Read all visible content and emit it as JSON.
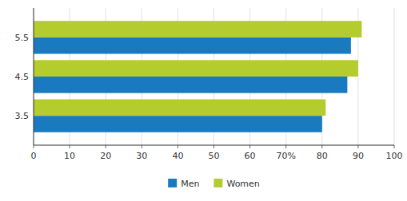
{
  "chart_data": {
    "type": "bar",
    "orientation": "horizontal",
    "categories": [
      "3.5",
      "4.5",
      "5.5"
    ],
    "series": [
      {
        "name": "Men",
        "color": "#1a7abf",
        "values": [
          80,
          87,
          88
        ]
      },
      {
        "name": "Women",
        "color": "#b5cc2e",
        "values": [
          81,
          90,
          91
        ]
      }
    ],
    "xlim": [
      0,
      100
    ],
    "xticks": [
      0,
      10,
      20,
      30,
      40,
      50,
      60,
      {
        "value": 70,
        "label": "70%"
      },
      80,
      90,
      100
    ],
    "grid": true,
    "legend": "bottom"
  }
}
